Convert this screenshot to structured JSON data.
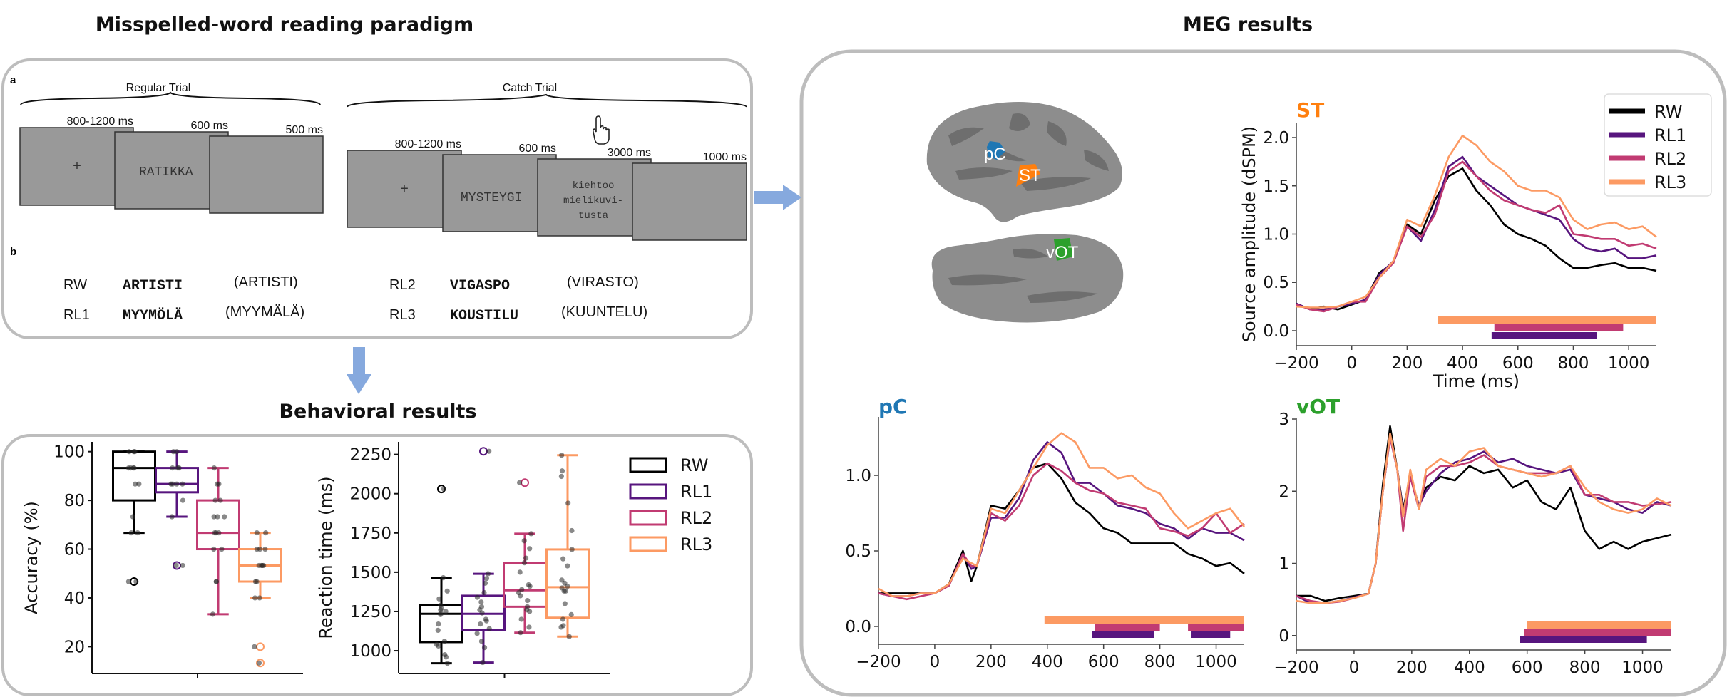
{
  "titles": {
    "paradigm": "Misspelled-word reading paradigm",
    "behavioral": "Behavioral results",
    "meg": "MEG results"
  },
  "paradigm": {
    "panel_a": "a",
    "panel_b": "b",
    "regular_trial": {
      "label": "Regular Trial",
      "screens": [
        {
          "duration": "800-1200 ms",
          "content": "+"
        },
        {
          "duration": "600 ms",
          "content": "RATIKKA"
        },
        {
          "duration": "500 ms",
          "content": ""
        }
      ]
    },
    "catch_trial": {
      "label": "Catch Trial",
      "response_icon": "pointing-hand-icon",
      "screens": [
        {
          "duration": "800-1200 ms",
          "content": "+"
        },
        {
          "duration": "600 ms",
          "content": "MYSTEYGI"
        },
        {
          "duration": "3000 ms",
          "content_lines": [
            "kiehtoo",
            "mielikuvi-",
            "tusta"
          ]
        },
        {
          "duration": "1000 ms",
          "content": ""
        }
      ]
    },
    "examples": [
      {
        "condition": "RW",
        "stimulus": "ARTISTI",
        "original": "(ARTISTI)"
      },
      {
        "condition": "RL1",
        "stimulus": "MYYMÖLÄ",
        "original": "(MYYMÄLÄ)"
      },
      {
        "condition": "RL2",
        "stimulus": "VIGASPO",
        "original": "(VIRASTO)"
      },
      {
        "condition": "RL3",
        "stimulus": "KOUSTILU",
        "original": "(KUUNTELU)"
      }
    ]
  },
  "colors": {
    "RW": "#000000",
    "RL1": "#57157e",
    "RL2": "#c13b72",
    "RL3": "#fc9a63",
    "ST": "#ff7f0e",
    "pC": "#1f77b4",
    "vOT": "#2ca02c",
    "arrow": "#86a9de",
    "frame": "#bdbdbd",
    "screen": "#999999"
  },
  "brain": {
    "labels": {
      "pC": "pC",
      "ST": "ST",
      "vOT": "vOT"
    }
  },
  "chart_data": [
    {
      "id": "accuracy",
      "type": "box",
      "ylabel": "Accuracy (%)",
      "ylim": [
        9,
        104
      ],
      "yticks": [
        20,
        40,
        60,
        80,
        100
      ],
      "ytick_labels": [
        "20",
        "40",
        "60",
        "80",
        "100"
      ],
      "categories": [
        "RW",
        "RL1",
        "RL2",
        "RL3"
      ],
      "boxes": [
        {
          "name": "RW",
          "whisker_low": 66.7,
          "q1": 80,
          "median": 93.3,
          "q3": 100,
          "whisker_high": 100,
          "outliers": [
            46.7
          ],
          "points": [
            100,
            100,
            100,
            93.3,
            93.3,
            93.3,
            93.3,
            86.7,
            86.7,
            73.3,
            66.7,
            66.7,
            46.7,
            46.7
          ]
        },
        {
          "name": "RL1",
          "whisker_low": 73.3,
          "q1": 83.3,
          "median": 86.7,
          "q3": 93.3,
          "whisker_high": 100,
          "outliers": [
            53.3
          ],
          "points": [
            100,
            100,
            93.3,
            93.3,
            93.3,
            86.7,
            86.7,
            86.7,
            86.7,
            80,
            73.3,
            53.3,
            53.3
          ]
        },
        {
          "name": "RL2",
          "whisker_low": 33.3,
          "q1": 60,
          "median": 66.7,
          "q3": 80,
          "whisker_high": 93.3,
          "outliers": [],
          "points": [
            93.3,
            86.7,
            86.7,
            80,
            80,
            73.3,
            73.3,
            73.3,
            66.7,
            66.7,
            66.7,
            60,
            60,
            46.7,
            46.7,
            33.3
          ]
        },
        {
          "name": "RL3",
          "whisker_low": 40,
          "q1": 46.7,
          "median": 53.3,
          "q3": 60,
          "whisker_high": 66.7,
          "outliers": [
            20,
            13.3
          ],
          "points": [
            66.7,
            66.7,
            60,
            60,
            60,
            53.3,
            53.3,
            53.3,
            53.3,
            46.7,
            46.7,
            40,
            40,
            20,
            13.3
          ]
        }
      ]
    },
    {
      "id": "reaction-time",
      "type": "box",
      "ylabel": "Reaction time (ms)",
      "ylim": [
        855,
        2330
      ],
      "yticks": [
        1000,
        1250,
        1500,
        1750,
        2000,
        2250
      ],
      "ytick_labels": [
        "1000",
        "1250",
        "1500",
        "1750",
        "2000",
        "2250"
      ],
      "legend": {
        "position": "right",
        "entries": [
          "RW",
          "RL1",
          "RL2",
          "RL3"
        ]
      },
      "categories": [
        "RW",
        "RL1",
        "RL2",
        "RL3"
      ],
      "boxes": [
        {
          "name": "RW",
          "whisker_low": 920,
          "q1": 1055,
          "median": 1235,
          "q3": 1290,
          "whisker_high": 1465,
          "outliers": [
            2030
          ],
          "points": [
            2030,
            1465,
            1380,
            1330,
            1290,
            1270,
            1260,
            1250,
            1240,
            1230,
            1170,
            1130,
            1060,
            1040,
            1030,
            975,
            960,
            920
          ]
        },
        {
          "name": "RL1",
          "whisker_low": 925,
          "q1": 1130,
          "median": 1235,
          "q3": 1350,
          "whisker_high": 1490,
          "outliers": [
            2270
          ],
          "points": [
            2270,
            1490,
            1460,
            1430,
            1370,
            1340,
            1310,
            1280,
            1260,
            1240,
            1200,
            1190,
            1170,
            1140,
            1110,
            1060,
            1020,
            925
          ]
        },
        {
          "name": "RL2",
          "whisker_low": 1115,
          "q1": 1280,
          "median": 1385,
          "q3": 1560,
          "whisker_high": 1745,
          "outliers": [
            2070
          ],
          "points": [
            2070,
            1745,
            1700,
            1650,
            1590,
            1560,
            1500,
            1420,
            1410,
            1390,
            1370,
            1350,
            1320,
            1280,
            1260,
            1250,
            1200,
            1150,
            1115
          ]
        },
        {
          "name": "RL3",
          "whisker_low": 1090,
          "q1": 1210,
          "median": 1405,
          "q3": 1645,
          "whisker_high": 2245,
          "outliers": [],
          "points": [
            2245,
            2145,
            2110,
            1940,
            1765,
            1645,
            1585,
            1540,
            1450,
            1430,
            1410,
            1400,
            1380,
            1380,
            1300,
            1230,
            1200,
            1160,
            1150,
            1090
          ]
        }
      ]
    },
    {
      "id": "ST",
      "type": "line",
      "title": "ST",
      "xlabel": "Time (ms)",
      "ylabel": "Source amplitude (dSPM)",
      "xlim": [
        -200,
        1100
      ],
      "ylim": [
        -0.155,
        2.155
      ],
      "xticks": [
        -200,
        0,
        200,
        400,
        600,
        800,
        1000
      ],
      "xtick_labels": [
        "−200",
        "0",
        "200",
        "400",
        "600",
        "800",
        "1000"
      ],
      "yticks": [
        0,
        0.5,
        1,
        1.5,
        2
      ],
      "ytick_labels": [
        "0.0",
        "0.5",
        "1.0",
        "1.5",
        "2.0"
      ],
      "legend": {
        "position": "top-right",
        "entries": [
          "RW",
          "RL1",
          "RL2",
          "RL3"
        ]
      },
      "x": [
        -200,
        -150,
        -100,
        -50,
        0,
        50,
        100,
        150,
        200,
        250,
        300,
        350,
        400,
        450,
        500,
        550,
        600,
        650,
        700,
        750,
        800,
        850,
        900,
        950,
        1000,
        1050,
        1100
      ],
      "series": [
        {
          "name": "RW",
          "values": [
            0.28,
            0.22,
            0.25,
            0.22,
            0.27,
            0.32,
            0.6,
            0.7,
            1.1,
            1.0,
            1.35,
            1.6,
            1.68,
            1.45,
            1.3,
            1.1,
            1.0,
            0.95,
            0.88,
            0.75,
            0.65,
            0.65,
            0.68,
            0.7,
            0.65,
            0.65,
            0.62
          ]
        },
        {
          "name": "RL1",
          "values": [
            0.28,
            0.22,
            0.22,
            0.25,
            0.28,
            0.32,
            0.58,
            0.72,
            1.08,
            0.93,
            1.25,
            1.7,
            1.8,
            1.6,
            1.5,
            1.4,
            1.3,
            1.25,
            1.2,
            1.15,
            0.95,
            0.85,
            0.82,
            0.85,
            0.75,
            0.75,
            0.78
          ]
        },
        {
          "name": "RL2",
          "values": [
            0.27,
            0.22,
            0.2,
            0.25,
            0.3,
            0.3,
            0.55,
            0.7,
            1.08,
            0.97,
            1.2,
            1.65,
            1.75,
            1.6,
            1.45,
            1.35,
            1.3,
            1.25,
            1.22,
            1.3,
            1.0,
            0.98,
            0.95,
            0.95,
            0.88,
            0.9,
            0.85
          ]
        },
        {
          "name": "RL3",
          "values": [
            0.25,
            0.24,
            0.24,
            0.25,
            0.3,
            0.35,
            0.55,
            0.72,
            1.15,
            1.08,
            1.4,
            1.8,
            2.02,
            1.92,
            1.75,
            1.65,
            1.5,
            1.45,
            1.45,
            1.38,
            1.15,
            1.05,
            1.1,
            1.12,
            1.05,
            1.08,
            0.97
          ]
        }
      ],
      "significance": [
        {
          "name": "RL3",
          "intervals": [
            [
              310,
              1100
            ]
          ]
        },
        {
          "name": "RL2",
          "intervals": [
            [
              515,
              980
            ]
          ]
        },
        {
          "name": "RL1",
          "intervals": [
            [
              505,
              885
            ]
          ]
        }
      ]
    },
    {
      "id": "pC",
      "type": "line",
      "title": "pC",
      "xlim": [
        -200,
        1100
      ],
      "ylim": [
        -0.118,
        1.387
      ],
      "xticks": [
        -200,
        0,
        200,
        400,
        600,
        800,
        1000
      ],
      "xtick_labels": [
        "−200",
        "0",
        "200",
        "400",
        "600",
        "800",
        "1000"
      ],
      "yticks": [
        0,
        0.5,
        1
      ],
      "ytick_labels": [
        "0.0",
        "0.5",
        "1.0"
      ],
      "x": [
        -200,
        -150,
        -100,
        -50,
        0,
        50,
        100,
        130,
        150,
        200,
        250,
        300,
        350,
        400,
        450,
        500,
        550,
        600,
        650,
        700,
        750,
        800,
        850,
        900,
        950,
        1000,
        1050,
        1100
      ],
      "series": [
        {
          "name": "RW",
          "values": [
            0.22,
            0.22,
            0.22,
            0.22,
            0.22,
            0.28,
            0.5,
            0.3,
            0.4,
            0.8,
            0.78,
            0.9,
            1.05,
            1.08,
            0.98,
            0.82,
            0.75,
            0.65,
            0.62,
            0.55,
            0.55,
            0.55,
            0.55,
            0.48,
            0.45,
            0.4,
            0.42,
            0.35
          ]
        },
        {
          "name": "RL1",
          "values": [
            0.22,
            0.2,
            0.2,
            0.22,
            0.22,
            0.27,
            0.48,
            0.38,
            0.4,
            0.72,
            0.72,
            0.85,
            1.1,
            1.22,
            1.15,
            0.95,
            0.95,
            0.88,
            0.8,
            0.78,
            0.75,
            0.68,
            0.65,
            0.58,
            0.65,
            0.62,
            0.62,
            0.57
          ]
        },
        {
          "name": "RL2",
          "values": [
            0.22,
            0.2,
            0.18,
            0.2,
            0.22,
            0.27,
            0.48,
            0.4,
            0.4,
            0.75,
            0.7,
            0.8,
            1.0,
            1.08,
            1.03,
            0.95,
            0.9,
            0.88,
            0.82,
            0.8,
            0.78,
            0.65,
            0.63,
            0.6,
            0.65,
            0.75,
            0.62,
            0.68
          ]
        },
        {
          "name": "RL3",
          "values": [
            0.25,
            0.2,
            0.2,
            0.22,
            0.22,
            0.28,
            0.45,
            0.42,
            0.4,
            0.78,
            0.75,
            0.9,
            1.05,
            1.2,
            1.28,
            1.22,
            1.05,
            1.05,
            0.98,
            1.0,
            0.92,
            0.88,
            0.75,
            0.65,
            0.7,
            0.75,
            0.78,
            0.66
          ]
        }
      ],
      "significance": [
        {
          "name": "RL3",
          "intervals": [
            [
              390,
              1100
            ]
          ]
        },
        {
          "name": "RL2",
          "intervals": [
            [
              570,
              800
            ],
            [
              900,
              1100
            ]
          ]
        },
        {
          "name": "RL1",
          "intervals": [
            [
              560,
              780
            ],
            [
              910,
              1050
            ]
          ]
        }
      ]
    },
    {
      "id": "vOT",
      "type": "line",
      "title": "vOT",
      "xlim": [
        -200,
        1100
      ],
      "ylim": [
        -0.2,
        3.01
      ],
      "xticks": [
        -200,
        0,
        200,
        400,
        600,
        800,
        1000
      ],
      "xtick_labels": [
        "−200",
        "0",
        "200",
        "400",
        "600",
        "800",
        "1000"
      ],
      "yticks": [
        0,
        1,
        2,
        3
      ],
      "ytick_labels": [
        "0",
        "1",
        "2",
        "3"
      ],
      "x": [
        -200,
        -150,
        -100,
        -50,
        0,
        50,
        75,
        100,
        125,
        150,
        170,
        195,
        225,
        250,
        300,
        350,
        400,
        450,
        500,
        550,
        600,
        650,
        700,
        750,
        800,
        850,
        900,
        950,
        1000,
        1050,
        1100
      ],
      "series": [
        {
          "name": "RW",
          "values": [
            0.55,
            0.55,
            0.48,
            0.52,
            0.55,
            0.58,
            1.0,
            2.1,
            2.9,
            2.3,
            1.75,
            2.2,
            1.8,
            2.05,
            2.2,
            2.15,
            2.35,
            2.25,
            2.3,
            2.05,
            2.15,
            1.85,
            1.75,
            2.05,
            1.45,
            1.2,
            1.3,
            1.2,
            1.3,
            1.35,
            1.4
          ]
        },
        {
          "name": "RL1",
          "values": [
            0.55,
            0.45,
            0.45,
            0.48,
            0.53,
            0.58,
            1.0,
            2.0,
            2.75,
            2.3,
            1.7,
            2.2,
            1.8,
            2.0,
            2.25,
            2.4,
            2.45,
            2.55,
            2.4,
            2.45,
            2.35,
            2.3,
            2.25,
            2.3,
            1.95,
            1.9,
            1.85,
            1.75,
            1.7,
            1.85,
            1.8
          ]
        },
        {
          "name": "RL2",
          "values": [
            0.55,
            0.48,
            0.45,
            0.47,
            0.52,
            0.58,
            1.0,
            2.0,
            2.75,
            2.3,
            1.45,
            2.2,
            1.75,
            2.2,
            2.35,
            2.35,
            2.4,
            2.5,
            2.35,
            2.3,
            2.25,
            2.25,
            2.25,
            2.35,
            1.95,
            1.95,
            1.85,
            1.85,
            1.8,
            1.82,
            1.85
          ]
        },
        {
          "name": "RL3",
          "values": [
            0.48,
            0.45,
            0.45,
            0.48,
            0.52,
            0.58,
            1.0,
            2.0,
            2.8,
            2.3,
            1.65,
            2.3,
            1.75,
            2.3,
            2.45,
            2.35,
            2.55,
            2.6,
            2.35,
            2.3,
            2.25,
            2.2,
            2.25,
            2.35,
            2.05,
            1.85,
            1.75,
            1.7,
            1.75,
            1.9,
            1.8
          ]
        }
      ],
      "significance": [
        {
          "name": "RL3",
          "intervals": [
            [
              600,
              1100
            ]
          ]
        },
        {
          "name": "RL2",
          "intervals": [
            [
              590,
              1100
            ]
          ]
        },
        {
          "name": "RL1",
          "intervals": [
            [
              575,
              1015
            ]
          ]
        }
      ]
    }
  ]
}
